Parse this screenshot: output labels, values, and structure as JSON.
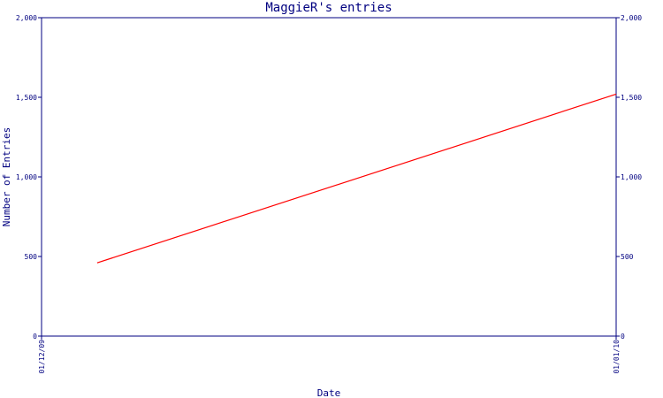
{
  "colors": {
    "axis": "#000080",
    "text": "#000080",
    "series": "#ff0000",
    "background": "#ffffff"
  },
  "chart_data": {
    "type": "line",
    "title": "MaggieR's entries",
    "xlabel": "Date",
    "ylabel": "Number of Entries",
    "x_tick_labels": [
      "01/12/09",
      "01/01/10"
    ],
    "x_range": [
      "2009-12-01",
      "2010-01-01"
    ],
    "y_ticks": [
      0,
      500,
      1000,
      1500,
      2000
    ],
    "y_tick_labels": [
      "0",
      "500",
      "1,000",
      "1,500",
      "2,000"
    ],
    "ylim": [
      0,
      2000
    ],
    "grid": false,
    "right_axis": true,
    "series": [
      {
        "x": [
          "2009-12-04",
          "2010-01-01"
        ],
        "values": [
          460,
          1520
        ]
      }
    ]
  }
}
